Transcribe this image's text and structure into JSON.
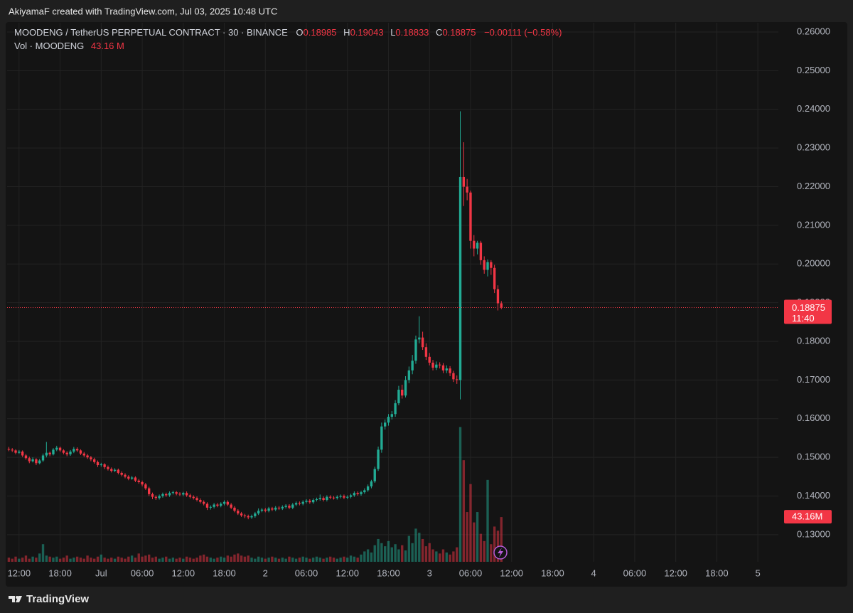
{
  "header": "AkiyamaF created with TradingView.com, Jul 03, 2025 10:48 UTC",
  "footer": "TradingView",
  "chart_data": {
    "type": "candlestick",
    "legend": {
      "symbol": "MOODENG / TetherUS PERPETUAL CONTRACT · 30 · BINANCE",
      "ohlc": [
        {
          "key": "O",
          "value": "0.18985"
        },
        {
          "key": "H",
          "value": "0.19043"
        },
        {
          "key": "L",
          "value": "0.18833"
        },
        {
          "key": "C",
          "value": "0.18875"
        }
      ],
      "change": "−0.00111 (−0.58%)",
      "volume_title": "Vol · MOODENG",
      "volume_value": "43.16 M"
    },
    "countdown": "11:40",
    "last_volume_label": "43.16M",
    "up_color": "#22ab94",
    "down_color": "#f23645",
    "grid": true,
    "xlim": [
      -0.5,
      225
    ],
    "xticks": [
      {
        "value": 3,
        "label": "12:00"
      },
      {
        "value": 15,
        "label": "18:00"
      },
      {
        "value": 27,
        "label": "Jul"
      },
      {
        "value": 39,
        "label": "06:00"
      },
      {
        "value": 51,
        "label": "12:00"
      },
      {
        "value": 63,
        "label": "18:00"
      },
      {
        "value": 75,
        "label": "2"
      },
      {
        "value": 87,
        "label": "06:00"
      },
      {
        "value": 99,
        "label": "12:00"
      },
      {
        "value": 111,
        "label": "18:00"
      },
      {
        "value": 123,
        "label": "3"
      },
      {
        "value": 135,
        "label": "06:00"
      },
      {
        "value": 147,
        "label": "12:00"
      },
      {
        "value": 159,
        "label": "18:00"
      },
      {
        "value": 171,
        "label": "4"
      },
      {
        "value": 183,
        "label": "06:00"
      },
      {
        "value": 195,
        "label": "12:00"
      },
      {
        "value": 207,
        "label": "18:00"
      },
      {
        "value": 219,
        "label": "5"
      }
    ],
    "ylim": [
      0.123,
      0.2624
    ],
    "yticks": [
      {
        "value": 0.13,
        "label": "0.13000"
      },
      {
        "value": 0.14,
        "label": "0.14000"
      },
      {
        "value": 0.15,
        "label": "0.15000"
      },
      {
        "value": 0.16,
        "label": "0.16000"
      },
      {
        "value": 0.17,
        "label": "0.17000"
      },
      {
        "value": 0.18,
        "label": "0.18000"
      },
      {
        "value": 0.19,
        "label": "0.19000"
      },
      {
        "value": 0.2,
        "label": "0.20000"
      },
      {
        "value": 0.21,
        "label": "0.21000"
      },
      {
        "value": 0.22,
        "label": "0.22000"
      },
      {
        "value": 0.23,
        "label": "0.23000"
      },
      {
        "value": 0.24,
        "label": "0.24000"
      },
      {
        "value": 0.25,
        "label": "0.25000"
      },
      {
        "value": 0.26,
        "label": "0.26000"
      }
    ],
    "y2lim": [
      0,
      520
    ],
    "open": [
      0.1522,
      0.152,
      0.1518,
      0.1512,
      0.1515,
      0.1505,
      0.1498,
      0.149,
      0.1495,
      0.1485,
      0.1492,
      0.1505,
      0.1512,
      0.1508,
      0.152,
      0.1525,
      0.1518,
      0.1512,
      0.1508,
      0.1515,
      0.1522,
      0.1518,
      0.151,
      0.1505,
      0.15,
      0.1495,
      0.1488,
      0.148,
      0.1482,
      0.1475,
      0.147,
      0.1465,
      0.1468,
      0.146,
      0.1455,
      0.145,
      0.1445,
      0.1448,
      0.144,
      0.1436,
      0.143,
      0.142,
      0.1405,
      0.1398,
      0.1395,
      0.14,
      0.1405,
      0.1402,
      0.1408,
      0.141,
      0.1406,
      0.1404,
      0.1408,
      0.1402,
      0.1398,
      0.1395,
      0.139,
      0.1385,
      0.138,
      0.137,
      0.1372,
      0.1378,
      0.1375,
      0.138,
      0.1385,
      0.1378,
      0.137,
      0.1362,
      0.1355,
      0.135,
      0.1348,
      0.1345,
      0.1348,
      0.1355,
      0.1362,
      0.1365,
      0.1362,
      0.1368,
      0.1365,
      0.137,
      0.1368,
      0.1372,
      0.1375,
      0.137,
      0.1378,
      0.1382,
      0.138,
      0.1385,
      0.1388,
      0.1384,
      0.139,
      0.1392,
      0.1395,
      0.139,
      0.1398,
      0.1396,
      0.1395,
      0.1398,
      0.14,
      0.1396,
      0.1398,
      0.1402,
      0.1408,
      0.1405,
      0.141,
      0.1415,
      0.1425,
      0.1438,
      0.147,
      0.152,
      0.158,
      0.159,
      0.1605,
      0.1612,
      0.164,
      0.1675,
      0.166,
      0.17,
      0.1725,
      0.175,
      0.1805,
      0.181,
      0.1785,
      0.176,
      0.1745,
      0.1732,
      0.174,
      0.1738,
      0.1725,
      0.173,
      0.1718,
      0.1702,
      0.17,
      0.2225,
      0.22,
      0.2185,
      0.206,
      0.204,
      0.2055,
      0.201,
      0.1985,
      0.2005,
      0.199,
      0.1935,
      0.18985
    ],
    "high": [
      0.1527,
      0.1524,
      0.1521,
      0.1519,
      0.1518,
      0.1509,
      0.1502,
      0.15,
      0.1498,
      0.1496,
      0.151,
      0.154,
      0.1515,
      0.1524,
      0.153,
      0.1528,
      0.1521,
      0.1516,
      0.1519,
      0.1527,
      0.1526,
      0.1521,
      0.1514,
      0.1509,
      0.1504,
      0.1499,
      0.1492,
      0.1486,
      0.1485,
      0.1479,
      0.1474,
      0.1472,
      0.1471,
      0.1464,
      0.1459,
      0.1454,
      0.1452,
      0.1451,
      0.1444,
      0.144,
      0.1434,
      0.1424,
      0.1409,
      0.1402,
      0.1404,
      0.1409,
      0.1409,
      0.1412,
      0.1414,
      0.1413,
      0.141,
      0.1411,
      0.1412,
      0.1406,
      0.1402,
      0.1399,
      0.1394,
      0.1389,
      0.1384,
      0.1376,
      0.1382,
      0.1382,
      0.1384,
      0.1389,
      0.1389,
      0.1382,
      0.1374,
      0.1366,
      0.1359,
      0.1354,
      0.1352,
      0.1352,
      0.1359,
      0.1368,
      0.1369,
      0.1369,
      0.1372,
      0.1372,
      0.1374,
      0.1374,
      0.1376,
      0.1379,
      0.1379,
      0.1382,
      0.1386,
      0.1386,
      0.1389,
      0.1392,
      0.1392,
      0.1394,
      0.1396,
      0.1404,
      0.1399,
      0.1402,
      0.1402,
      0.14,
      0.1402,
      0.1404,
      0.1404,
      0.1402,
      0.1406,
      0.1412,
      0.1412,
      0.1414,
      0.142,
      0.143,
      0.1442,
      0.1476,
      0.1528,
      0.159,
      0.1598,
      0.1612,
      0.162,
      0.1648,
      0.1685,
      0.1688,
      0.171,
      0.1735,
      0.1765,
      0.1815,
      0.1865,
      0.1825,
      0.1795,
      0.177,
      0.1752,
      0.1748,
      0.1746,
      0.1744,
      0.1738,
      0.1736,
      0.1724,
      0.1712,
      0.2395,
      0.2315,
      0.222,
      0.219,
      0.2075,
      0.206,
      0.206,
      0.202,
      0.2012,
      0.201,
      0.1998,
      0.1945,
      0.19043
    ],
    "low": [
      0.1516,
      0.1514,
      0.1508,
      0.1509,
      0.1501,
      0.1494,
      0.1485,
      0.1487,
      0.148,
      0.1482,
      0.1488,
      0.15,
      0.1503,
      0.1505,
      0.1516,
      0.1514,
      0.1508,
      0.1503,
      0.1504,
      0.1511,
      0.1514,
      0.1506,
      0.1501,
      0.1496,
      0.149,
      0.1484,
      0.1475,
      0.1476,
      0.147,
      0.1466,
      0.1461,
      0.1462,
      0.1456,
      0.1451,
      0.1446,
      0.1441,
      0.1442,
      0.1436,
      0.1432,
      0.1425,
      0.1416,
      0.14,
      0.1392,
      0.139,
      0.1391,
      0.1396,
      0.1398,
      0.1398,
      0.1404,
      0.1402,
      0.14,
      0.14,
      0.1398,
      0.1394,
      0.1391,
      0.1386,
      0.1381,
      0.1376,
      0.1364,
      0.1365,
      0.1368,
      0.1371,
      0.1371,
      0.1376,
      0.1374,
      0.1366,
      0.1358,
      0.1351,
      0.1346,
      0.1343,
      0.134,
      0.1341,
      0.1344,
      0.1351,
      0.1358,
      0.1358,
      0.1358,
      0.1361,
      0.1361,
      0.1364,
      0.1364,
      0.1368,
      0.1366,
      0.1366,
      0.1374,
      0.1376,
      0.1376,
      0.1381,
      0.138,
      0.138,
      0.1386,
      0.1388,
      0.1386,
      0.1386,
      0.1392,
      0.1391,
      0.1391,
      0.1394,
      0.1392,
      0.1392,
      0.1394,
      0.1398,
      0.1401,
      0.1401,
      0.1406,
      0.1411,
      0.142,
      0.1434,
      0.1465,
      0.1512,
      0.1572,
      0.1582,
      0.1598,
      0.1605,
      0.1635,
      0.1652,
      0.1655,
      0.1692,
      0.1715,
      0.1742,
      0.1795,
      0.1778,
      0.1752,
      0.1738,
      0.1725,
      0.1726,
      0.173,
      0.1718,
      0.1718,
      0.171,
      0.1695,
      0.169,
      0.165,
      0.215,
      0.2165,
      0.204,
      0.202,
      0.2025,
      0.1998,
      0.1975,
      0.1968,
      0.1972,
      0.1925,
      0.188,
      0.18833
    ],
    "close": [
      0.152,
      0.1518,
      0.1512,
      0.1515,
      0.1505,
      0.1498,
      0.149,
      0.1495,
      0.1485,
      0.1492,
      0.1505,
      0.1512,
      0.1508,
      0.152,
      0.1525,
      0.1518,
      0.1512,
      0.1508,
      0.1515,
      0.1522,
      0.1518,
      0.151,
      0.1505,
      0.15,
      0.1495,
      0.1488,
      0.148,
      0.1482,
      0.1475,
      0.147,
      0.1465,
      0.1468,
      0.146,
      0.1455,
      0.145,
      0.1445,
      0.1448,
      0.144,
      0.1436,
      0.143,
      0.142,
      0.1405,
      0.1398,
      0.1395,
      0.14,
      0.1405,
      0.1402,
      0.1408,
      0.141,
      0.1406,
      0.1404,
      0.1408,
      0.1402,
      0.1398,
      0.1395,
      0.139,
      0.1385,
      0.138,
      0.137,
      0.1372,
      0.1378,
      0.1375,
      0.138,
      0.1385,
      0.1378,
      0.137,
      0.1362,
      0.1355,
      0.135,
      0.1348,
      0.1345,
      0.1348,
      0.1355,
      0.1362,
      0.1365,
      0.1362,
      0.1368,
      0.1365,
      0.137,
      0.1368,
      0.1372,
      0.1375,
      0.137,
      0.1378,
      0.1382,
      0.138,
      0.1385,
      0.1388,
      0.1384,
      0.139,
      0.1392,
      0.1395,
      0.139,
      0.1398,
      0.1396,
      0.1395,
      0.1398,
      0.14,
      0.1396,
      0.1398,
      0.1402,
      0.1408,
      0.1405,
      0.141,
      0.1415,
      0.1425,
      0.1438,
      0.147,
      0.152,
      0.158,
      0.159,
      0.1605,
      0.1612,
      0.164,
      0.1675,
      0.166,
      0.17,
      0.1725,
      0.175,
      0.1805,
      0.181,
      0.1785,
      0.176,
      0.1745,
      0.1732,
      0.174,
      0.1738,
      0.1725,
      0.173,
      0.1718,
      0.1702,
      0.17,
      0.2225,
      0.22,
      0.2185,
      0.206,
      0.204,
      0.2055,
      0.201,
      0.1985,
      0.2005,
      0.199,
      0.1935,
      0.18985,
      0.18875
    ],
    "volume": [
      4,
      3,
      5,
      3,
      4,
      6,
      3,
      5,
      4,
      8,
      17,
      6,
      5,
      4,
      5,
      3,
      4,
      6,
      3,
      4,
      5,
      4,
      3,
      6,
      4,
      3,
      5,
      7,
      4,
      3,
      4,
      3,
      5,
      4,
      3,
      5,
      6,
      4,
      8,
      5,
      6,
      7,
      4,
      5,
      3,
      4,
      5,
      3,
      4,
      3,
      4,
      3,
      5,
      4,
      3,
      4,
      6,
      7,
      5,
      4,
      3,
      4,
      5,
      4,
      6,
      5,
      7,
      8,
      6,
      5,
      6,
      4,
      3,
      5,
      4,
      3,
      4,
      5,
      4,
      3,
      4,
      3,
      5,
      4,
      3,
      4,
      5,
      4,
      3,
      4,
      5,
      4,
      3,
      4,
      5,
      4,
      3,
      4,
      5,
      4,
      6,
      5,
      4,
      7,
      10,
      12,
      9,
      16,
      22,
      18,
      15,
      20,
      14,
      17,
      12,
      16,
      11,
      25,
      18,
      32,
      28,
      22,
      15,
      18,
      12,
      10,
      8,
      12,
      9,
      7,
      10,
      14,
      130,
      98,
      48,
      75,
      38,
      48,
      27,
      20,
      79,
      17,
      34,
      30,
      43.16
    ]
  }
}
